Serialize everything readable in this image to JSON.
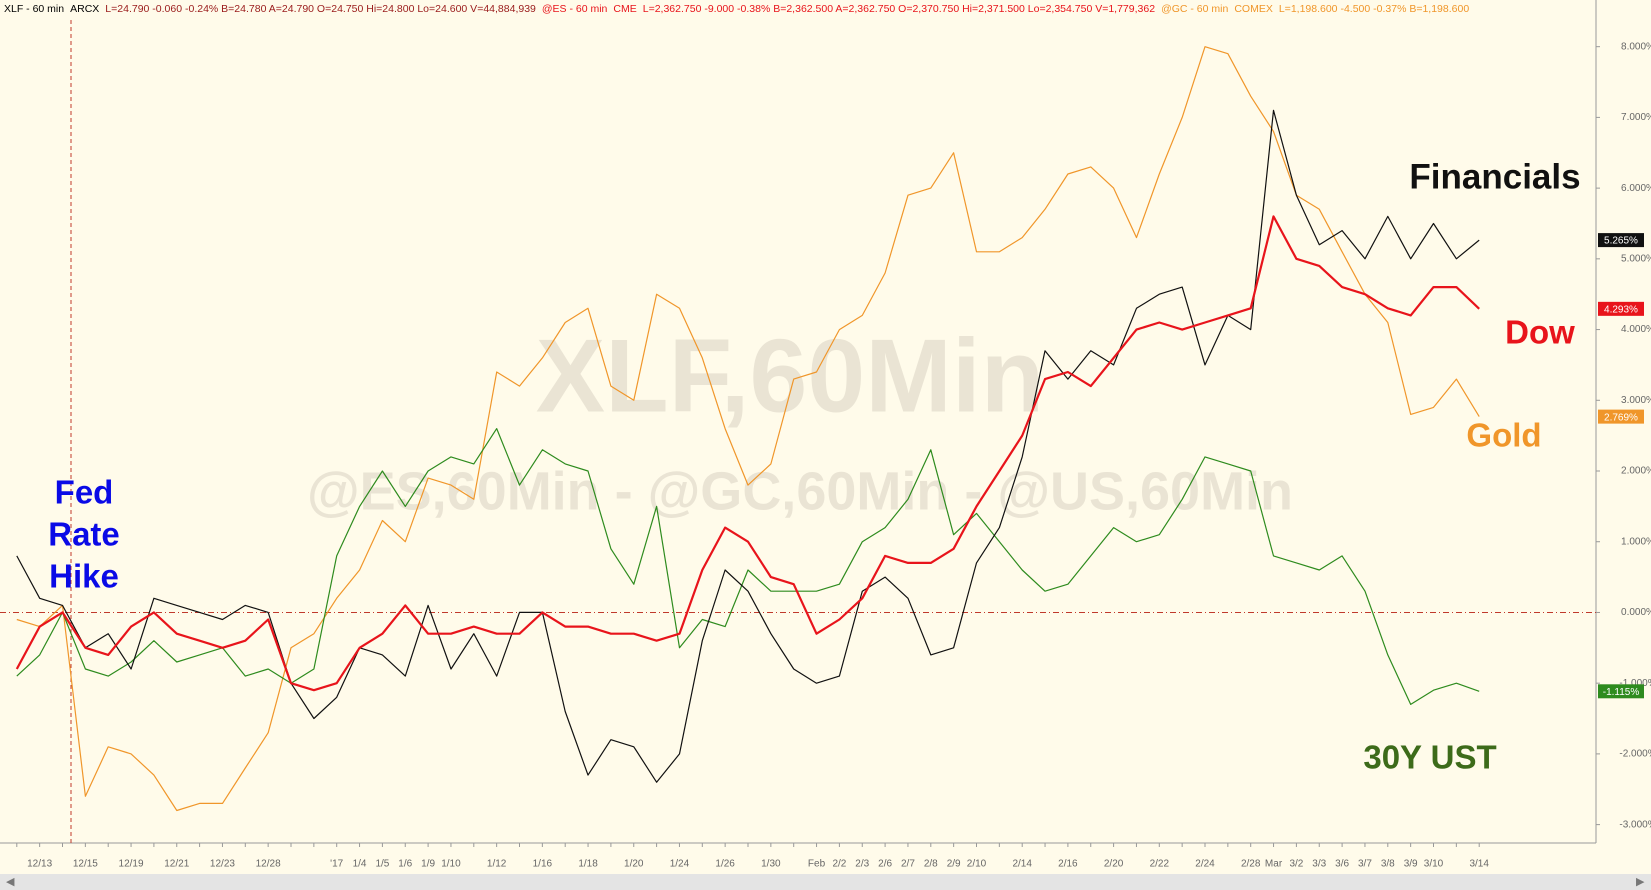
{
  "chart_data": {
    "type": "line",
    "header": [
      {
        "text": "XLF - 60 min",
        "color": "#000000"
      },
      {
        "text": "ARCX",
        "color": "#000000"
      },
      {
        "text": "L=24.790 -0.060 -0.24% B=24.780 A=24.790 O=24.750 Hi=24.800 Lo=24.600 V=44,884,939",
        "color": "#9a1b1b"
      },
      {
        "text": "@ES - 60 min",
        "color": "#e8141b"
      },
      {
        "text": "CME",
        "color": "#e8141b"
      },
      {
        "text": "L=2,362.750 -9.000 -0.38% B=2,362.500 A=2,362.750 O=2,370.750 Hi=2,371.500 Lo=2,354.750 V=1,779,362",
        "color": "#e8141b"
      },
      {
        "text": "@GC - 60 min",
        "color": "#f0962a"
      },
      {
        "text": "COMEX",
        "color": "#f0962a"
      },
      {
        "text": "L=1,198.600 -4.500 -0.37% B=1,198.600",
        "color": "#f0962a"
      }
    ],
    "watermarks": [
      "XLF,60Min",
      "@ES,60Min - @GC,60Min - @US,60Min"
    ],
    "annotation": [
      "Fed",
      "Rate",
      "Hike"
    ],
    "categories": [
      null,
      "12/13",
      null,
      "12/15",
      null,
      "12/19",
      null,
      "12/21",
      null,
      "12/23",
      null,
      "12/28",
      null,
      null,
      "'17",
      "1/4",
      "1/5",
      "1/6",
      "1/9",
      "1/10",
      null,
      "1/12",
      null,
      "1/16",
      null,
      "1/18",
      null,
      "1/20",
      null,
      "1/24",
      null,
      "1/26",
      null,
      "1/30",
      null,
      "Feb",
      "2/2",
      "2/3",
      "2/6",
      "2/7",
      "2/8",
      "2/9",
      "2/10",
      null,
      "2/14",
      null,
      "2/16",
      null,
      "2/20",
      null,
      "2/22",
      null,
      "2/24",
      null,
      "2/28",
      "Mar",
      "3/2",
      "3/3",
      "3/6",
      "3/7",
      "3/8",
      "3/9",
      "3/10",
      null,
      "3/14"
    ],
    "series": [
      {
        "name": "Gold",
        "color": "#f0962a",
        "width": 1.2,
        "values": [
          -0.1,
          -0.2,
          0.1,
          -2.6,
          -1.9,
          -2.0,
          -2.3,
          -2.8,
          -2.7,
          -2.7,
          -2.2,
          -1.7,
          -0.5,
          -0.3,
          0.2,
          0.6,
          1.3,
          1.0,
          1.9,
          1.8,
          1.6,
          3.4,
          3.2,
          3.6,
          4.1,
          4.3,
          3.2,
          3.0,
          4.5,
          4.3,
          3.6,
          2.6,
          1.8,
          2.1,
          3.3,
          3.4,
          4.0,
          4.2,
          4.8,
          5.9,
          6.0,
          6.5,
          5.1,
          5.1,
          5.3,
          5.7,
          6.2,
          6.3,
          6.0,
          5.3,
          6.2,
          7.0,
          8.0,
          7.9,
          7.3,
          6.8,
          5.9,
          5.7,
          5.1,
          4.5,
          4.1,
          2.8,
          2.9,
          3.3,
          2.769
        ],
        "value_labels": [
          null,
          null,
          null,
          null,
          null,
          null,
          null,
          null,
          null,
          null,
          null,
          null,
          null,
          null,
          null,
          null,
          null,
          null,
          null,
          null,
          null,
          null,
          null,
          null,
          null,
          null,
          null,
          null,
          null,
          null,
          null,
          null,
          null,
          null,
          null,
          null,
          null,
          null,
          null,
          null,
          null,
          null,
          null,
          null,
          null,
          null,
          null,
          null,
          null,
          null,
          null,
          null,
          null,
          null,
          null,
          null,
          null,
          null,
          null,
          null,
          null,
          null,
          null,
          null,
          "2.769%"
        ]
      },
      {
        "name": "30Y UST",
        "color": "#2e8b1e",
        "label_color": "#3d6b1a",
        "width": 1.2,
        "values": [
          -0.9,
          -0.6,
          0.0,
          -0.8,
          -0.9,
          -0.7,
          -0.4,
          -0.7,
          -0.6,
          -0.5,
          -0.9,
          -0.8,
          -1.0,
          -0.8,
          0.8,
          1.5,
          2.0,
          1.5,
          2.0,
          2.2,
          2.1,
          2.6,
          1.8,
          2.3,
          2.1,
          2.0,
          0.9,
          0.4,
          1.5,
          -0.5,
          -0.1,
          -0.2,
          0.6,
          0.3,
          0.3,
          0.3,
          0.4,
          1.0,
          1.2,
          1.6,
          2.3,
          1.1,
          1.4,
          1.0,
          0.6,
          0.3,
          0.4,
          0.8,
          1.2,
          1.0,
          1.1,
          1.6,
          2.2,
          2.1,
          2.0,
          0.8,
          0.7,
          0.6,
          0.8,
          0.3,
          -0.6,
          -1.3,
          -1.1,
          -1.0,
          -1.115
        ],
        "value_labels": [
          null,
          null,
          null,
          null,
          null,
          null,
          null,
          null,
          null,
          null,
          null,
          null,
          null,
          null,
          null,
          null,
          null,
          null,
          null,
          null,
          null,
          null,
          null,
          null,
          null,
          null,
          null,
          null,
          null,
          null,
          null,
          null,
          null,
          null,
          null,
          null,
          null,
          null,
          null,
          null,
          null,
          null,
          null,
          null,
          null,
          null,
          null,
          null,
          null,
          null,
          null,
          null,
          null,
          null,
          null,
          null,
          null,
          null,
          null,
          null,
          null,
          null,
          null,
          null,
          "-1.115%"
        ]
      },
      {
        "name": "Financials",
        "color": "#111111",
        "width": 1.2,
        "values": [
          0.8,
          0.2,
          0.1,
          -0.5,
          -0.3,
          -0.8,
          0.2,
          0.1,
          0.0,
          -0.1,
          0.1,
          0.0,
          -1.0,
          -1.5,
          -1.2,
          -0.5,
          -0.6,
          -0.9,
          0.1,
          -0.8,
          -0.3,
          -0.9,
          0.0,
          0.0,
          -1.4,
          -2.3,
          -1.8,
          -1.9,
          -2.4,
          -2.0,
          -0.4,
          0.6,
          0.3,
          -0.3,
          -0.8,
          -1.0,
          -0.9,
          0.3,
          0.5,
          0.2,
          -0.6,
          -0.5,
          0.7,
          1.2,
          2.2,
          3.7,
          3.3,
          3.7,
          3.5,
          4.3,
          4.5,
          4.6,
          3.5,
          4.2,
          4.0,
          7.1,
          5.9,
          5.2,
          5.4,
          5.0,
          5.6,
          5.0,
          5.5,
          5.0,
          5.265
        ],
        "value_labels": [
          null,
          null,
          null,
          null,
          null,
          null,
          null,
          null,
          null,
          null,
          null,
          null,
          null,
          null,
          null,
          null,
          null,
          null,
          null,
          null,
          null,
          null,
          null,
          null,
          null,
          null,
          null,
          null,
          null,
          null,
          null,
          null,
          null,
          null,
          null,
          null,
          null,
          null,
          null,
          null,
          null,
          null,
          null,
          null,
          null,
          null,
          null,
          null,
          null,
          null,
          null,
          null,
          null,
          null,
          null,
          null,
          null,
          null,
          null,
          null,
          null,
          null,
          null,
          null,
          "5.265%"
        ]
      },
      {
        "name": "Dow",
        "color": "#e8141b",
        "width": 2.2,
        "values": [
          -0.8,
          -0.2,
          0.0,
          -0.5,
          -0.6,
          -0.2,
          0.0,
          -0.3,
          -0.4,
          -0.5,
          -0.4,
          -0.1,
          -1.0,
          -1.1,
          -1.0,
          -0.5,
          -0.3,
          0.1,
          -0.3,
          -0.3,
          -0.2,
          -0.3,
          -0.3,
          0.0,
          -0.2,
          -0.2,
          -0.3,
          -0.3,
          -0.4,
          -0.3,
          0.6,
          1.2,
          1.0,
          0.5,
          0.4,
          -0.3,
          -0.1,
          0.2,
          0.8,
          0.7,
          0.7,
          0.9,
          1.5,
          2.0,
          2.5,
          3.3,
          3.4,
          3.2,
          3.6,
          4.0,
          4.1,
          4.0,
          4.1,
          4.2,
          4.3,
          5.6,
          5.0,
          4.9,
          4.6,
          4.5,
          4.3,
          4.2,
          4.6,
          4.6,
          4.293
        ],
        "value_labels": [
          null,
          null,
          null,
          null,
          null,
          null,
          null,
          null,
          null,
          null,
          null,
          null,
          null,
          null,
          null,
          null,
          null,
          null,
          null,
          null,
          null,
          null,
          null,
          null,
          null,
          null,
          null,
          null,
          null,
          null,
          null,
          null,
          null,
          null,
          null,
          null,
          null,
          null,
          null,
          null,
          null,
          null,
          null,
          null,
          null,
          null,
          null,
          null,
          null,
          null,
          null,
          null,
          null,
          null,
          null,
          null,
          null,
          null,
          null,
          null,
          null,
          null,
          null,
          null,
          "4.293%"
        ]
      }
    ],
    "ylim": [
      -3.26,
      8.66
    ],
    "yticks": [
      {
        "value": -3,
        "label": "-3.000%"
      },
      {
        "value": -2,
        "label": "-2.000%"
      },
      {
        "value": -1,
        "label": "-1.000%"
      },
      {
        "value": 0,
        "label": "0.000%"
      },
      {
        "value": 1,
        "label": "1.000%"
      },
      {
        "value": 2,
        "label": "2.000%"
      },
      {
        "value": 3,
        "label": "3.000%"
      },
      {
        "value": 4,
        "label": "4.000%"
      },
      {
        "value": 5,
        "label": "5.000%"
      },
      {
        "value": 6,
        "label": "6.000%"
      },
      {
        "value": 7,
        "label": "7.000%"
      },
      {
        "value": 8,
        "label": "8.000%"
      }
    ],
    "zero_line": true,
    "y_axis_side": "right"
  }
}
